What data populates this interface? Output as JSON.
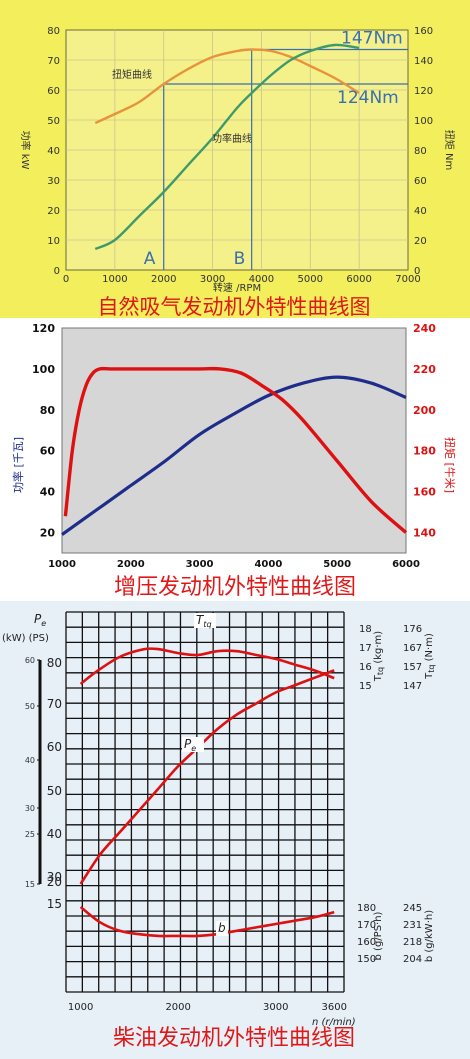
{
  "chart_data": [
    {
      "type": "line",
      "title": "自然吸气发动机外特性曲线图",
      "xlabel": "转速 /RPM",
      "ylabel_left": "功率 kW",
      "ylabel_right": "扭矩 Nm",
      "xlim": [
        0,
        7000
      ],
      "ylim_left": [
        0,
        80
      ],
      "ylim_right": [
        0,
        160
      ],
      "x_ticks": [
        "0",
        "1000",
        "2000",
        "3000",
        "4000",
        "5000",
        "6000",
        "7000"
      ],
      "y_left_ticks": [
        "0",
        "10",
        "20",
        "30",
        "40",
        "50",
        "60",
        "70",
        "80"
      ],
      "y_right_ticks": [
        "0",
        "20",
        "40",
        "60",
        "80",
        "100",
        "120",
        "140",
        "160"
      ],
      "grid": true,
      "series": [
        {
          "name": "扭矩曲线",
          "axis": "right",
          "x": [
            600,
            1000,
            1500,
            2000,
            2500,
            3000,
            3500,
            3800,
            4200,
            4600,
            5000,
            5500,
            6000
          ],
          "y": [
            98,
            104,
            112,
            124,
            134,
            142,
            146,
            147,
            146,
            142,
            136,
            128,
            118
          ]
        },
        {
          "name": "功率曲线",
          "axis": "left",
          "x": [
            600,
            1000,
            1500,
            2000,
            2500,
            3000,
            3500,
            3800,
            4200,
            4600,
            5000,
            5500,
            6000
          ],
          "y": [
            7,
            10,
            18,
            26,
            35,
            44,
            54,
            59,
            65,
            70,
            73,
            75,
            74
          ]
        }
      ],
      "annotations": {
        "marker_a": "A",
        "marker_a_x": 2000,
        "marker_b": "B",
        "marker_b_x": 3800,
        "torque_high": "147Nm",
        "torque_high_value": 147,
        "torque_low": "124Nm",
        "torque_low_value": 124
      }
    },
    {
      "type": "line",
      "title": "增压发动机外特性曲线图",
      "xlabel": "",
      "ylabel_left": "功率 [千瓦]",
      "ylabel_right": "扭矩 [牛米]",
      "xlim": [
        1000,
        6000
      ],
      "ylim_left": [
        10,
        120
      ],
      "ylim_right": [
        130,
        240
      ],
      "x_ticks": [
        "1000",
        "2000",
        "3000",
        "4000",
        "5000",
        "6000"
      ],
      "y_left_ticks": [
        "20",
        "40",
        "60",
        "80",
        "100",
        "120"
      ],
      "y_right_ticks": [
        "140",
        "160",
        "180",
        "200",
        "220",
        "240"
      ],
      "grid": false,
      "series": [
        {
          "name": "功率",
          "axis": "left",
          "color": "#1f2d8a",
          "x": [
            1000,
            1500,
            2000,
            2500,
            3000,
            3500,
            4000,
            4500,
            5000,
            5500,
            6000
          ],
          "y": [
            19,
            31,
            43,
            55,
            68,
            78,
            87,
            93,
            96,
            93,
            86
          ]
        },
        {
          "name": "扭矩",
          "axis": "right",
          "color": "#dd1111",
          "x": [
            1050,
            1150,
            1250,
            1350,
            1450,
            1550,
            1700,
            2000,
            2500,
            3000,
            3300,
            3600,
            3900,
            4200,
            4500,
            5000,
            5500,
            6000
          ],
          "y": [
            148,
            180,
            200,
            212,
            218,
            220,
            220,
            220,
            220,
            220,
            220,
            218,
            212,
            205,
            195,
            175,
            155,
            140
          ]
        }
      ]
    },
    {
      "type": "line",
      "title": "柴油发动机外特性曲线图",
      "xlabel": "n (r/min)",
      "xlim": [
        1000,
        3600
      ],
      "x_ticks": [
        "1000",
        "2000",
        "3000",
        "3600"
      ],
      "power_axis": {
        "label_symbol": "P",
        "label_sub": "e",
        "units_label": "(kW) (PS)",
        "kw_ticks": [
          "60",
          "50",
          "40",
          "30",
          "25",
          "15"
        ],
        "ps_ticks": [
          "80",
          "70",
          "60",
          "50",
          "40",
          "30",
          "20",
          "15"
        ]
      },
      "torque_axis": {
        "label_symbol": "T",
        "label_sub": "tq",
        "kgm_label": "(kg·m)",
        "nm_label": "(N·m)",
        "kgm_ticks": [
          "18",
          "17",
          "16",
          "15"
        ],
        "nm_ticks": [
          "176",
          "167",
          "157",
          "147"
        ]
      },
      "fuel_axis": {
        "label_symbol": "b",
        "ps_label": "(g/PS·h)",
        "kw_label": "(g/kW·h)",
        "ps_ticks": [
          "180",
          "170",
          "160",
          "150"
        ],
        "kw_ticks": [
          "245",
          "231",
          "218",
          "204"
        ]
      },
      "grid": true,
      "series": [
        {
          "name_symbol": "T",
          "name_sub": "tq",
          "color": "#dd1111",
          "x": [
            1000,
            1150,
            1400,
            1650,
            1800,
            2000,
            2200,
            2400,
            2600,
            2800,
            3000,
            3200,
            3400,
            3600
          ],
          "y_units": "N·m",
          "y": [
            147,
            153,
            161,
            165,
            165,
            163,
            162,
            164,
            164,
            162,
            160,
            157,
            154,
            150
          ]
        },
        {
          "name_symbol": "P",
          "name_sub": "e",
          "color": "#dd1111",
          "x": [
            1000,
            1200,
            1400,
            1600,
            1800,
            2000,
            2200,
            2400,
            2600,
            2800,
            3000,
            3200,
            3400,
            3600
          ],
          "y_units": "PS",
          "y": [
            20,
            28,
            34,
            40,
            46,
            52,
            57,
            62,
            66,
            69,
            72,
            74,
            76,
            78
          ]
        },
        {
          "name_symbol": "b",
          "name_sub": "",
          "color": "#dd1111",
          "x": [
            1000,
            1200,
            1400,
            1600,
            1800,
            2000,
            2200,
            2400,
            2600,
            2800,
            3000,
            3200,
            3400,
            3600
          ],
          "y_units": "g/PS·h",
          "y": [
            180,
            171,
            166,
            164,
            163,
            163,
            163,
            164,
            166,
            168,
            170,
            172,
            174,
            177
          ]
        }
      ]
    }
  ]
}
